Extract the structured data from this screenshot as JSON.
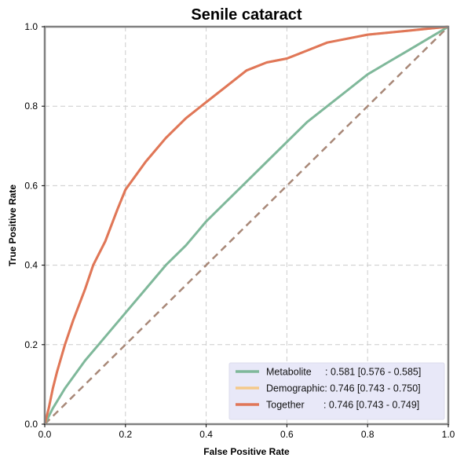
{
  "chart_data": {
    "type": "line",
    "title": "Senile cataract",
    "xlabel": "False Positive Rate",
    "ylabel": "True Positive Rate",
    "xlim": [
      0.0,
      1.0
    ],
    "ylim": [
      0.0,
      1.0
    ],
    "xticks": [
      "0.0",
      "0.2",
      "0.4",
      "0.6",
      "0.8",
      "1.0"
    ],
    "yticks": [
      "0.0",
      "0.2",
      "0.4",
      "0.6",
      "0.8",
      "1.0"
    ],
    "grid": true,
    "legend_position": "bottom-right",
    "legend_background": "#e8e8f8",
    "diagonal": {
      "color": "#a88878",
      "style": "dashed",
      "x": [
        0.0,
        1.0
      ],
      "y": [
        0.0,
        1.0
      ]
    },
    "series": [
      {
        "name": "Metabolite",
        "legend_label": "Metabolite     : 0.581 [0.576 - 0.585]",
        "color": "#7fb89a",
        "x": [
          0.0,
          0.02,
          0.05,
          0.1,
          0.15,
          0.2,
          0.25,
          0.3,
          0.35,
          0.4,
          0.45,
          0.5,
          0.55,
          0.6,
          0.65,
          0.7,
          0.75,
          0.8,
          0.85,
          0.9,
          0.95,
          1.0
        ],
        "y": [
          0.0,
          0.04,
          0.09,
          0.16,
          0.22,
          0.28,
          0.34,
          0.4,
          0.45,
          0.51,
          0.56,
          0.61,
          0.66,
          0.71,
          0.76,
          0.8,
          0.84,
          0.88,
          0.91,
          0.94,
          0.97,
          1.0
        ]
      },
      {
        "name": "Demographic",
        "legend_label": "Demographic: 0.746 [0.743 - 0.750]",
        "color": "#f5c98a",
        "x": [
          0.0,
          0.01,
          0.02,
          0.03,
          0.05,
          0.07,
          0.1,
          0.12,
          0.15,
          0.18,
          0.2,
          0.25,
          0.3,
          0.35,
          0.4,
          0.45,
          0.5,
          0.55,
          0.6,
          0.65,
          0.7,
          0.75,
          0.8,
          0.85,
          0.9,
          0.95,
          1.0
        ],
        "y": [
          0.0,
          0.04,
          0.09,
          0.13,
          0.2,
          0.26,
          0.34,
          0.4,
          0.46,
          0.54,
          0.59,
          0.66,
          0.72,
          0.77,
          0.81,
          0.85,
          0.89,
          0.91,
          0.92,
          0.94,
          0.96,
          0.97,
          0.98,
          0.985,
          0.99,
          0.995,
          1.0
        ]
      },
      {
        "name": "Together",
        "legend_label": "Together       : 0.746 [0.743 - 0.749]",
        "color": "#e07658",
        "x": [
          0.0,
          0.01,
          0.02,
          0.03,
          0.05,
          0.07,
          0.1,
          0.12,
          0.15,
          0.18,
          0.2,
          0.25,
          0.3,
          0.35,
          0.4,
          0.45,
          0.5,
          0.55,
          0.6,
          0.65,
          0.7,
          0.75,
          0.8,
          0.85,
          0.9,
          0.95,
          1.0
        ],
        "y": [
          0.0,
          0.04,
          0.09,
          0.13,
          0.2,
          0.26,
          0.34,
          0.4,
          0.46,
          0.54,
          0.59,
          0.66,
          0.72,
          0.77,
          0.81,
          0.85,
          0.89,
          0.91,
          0.92,
          0.94,
          0.96,
          0.97,
          0.98,
          0.985,
          0.99,
          0.995,
          1.0
        ]
      }
    ]
  }
}
